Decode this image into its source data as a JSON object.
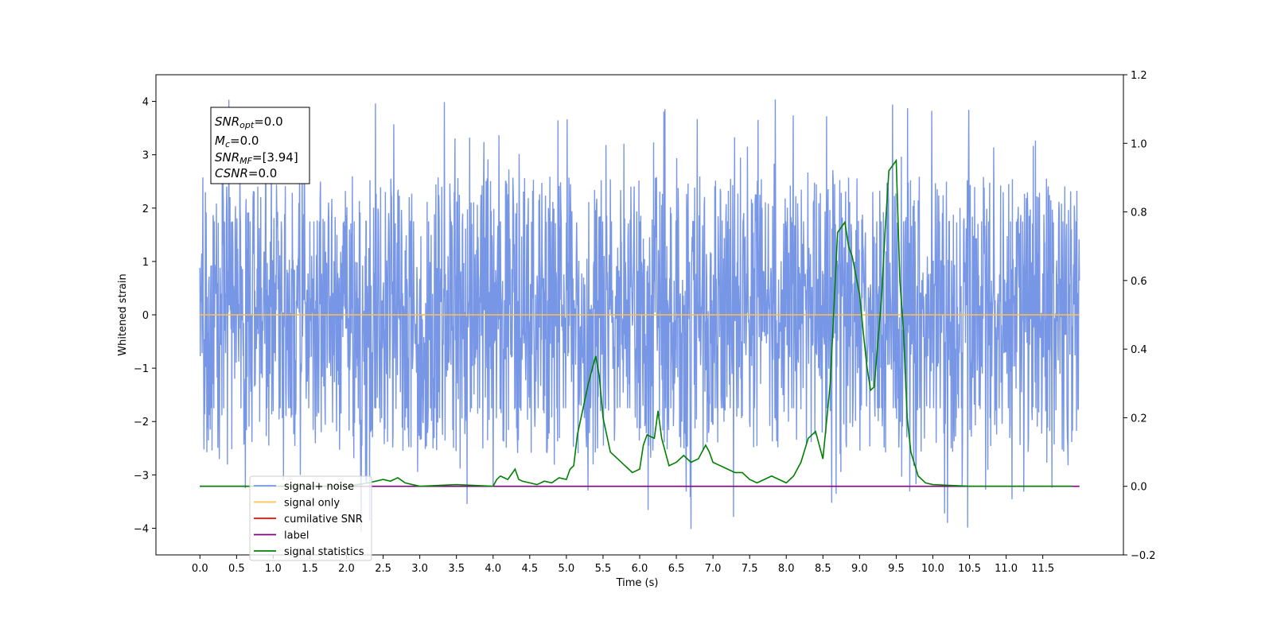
{
  "chart_data": {
    "type": "line",
    "title": "",
    "xlabel": "Time (s)",
    "ylabel": "Whitened strain",
    "y2label": "",
    "xlim": [
      -0.6,
      12.6
    ],
    "ylim": [
      -4.5,
      4.5
    ],
    "y2lim": [
      -0.2,
      1.2
    ],
    "x_ticks": [
      "0.0",
      "0.5",
      "1.0",
      "1.5",
      "2.0",
      "2.5",
      "3.0",
      "3.5",
      "4.0",
      "4.5",
      "5.0",
      "5.5",
      "6.0",
      "6.5",
      "7.0",
      "7.5",
      "8.0",
      "8.5",
      "9.0",
      "9.5",
      "10.0",
      "10.5",
      "11.0",
      "11.5"
    ],
    "y_ticks": [
      "−4",
      "−3",
      "−2",
      "−1",
      "0",
      "1",
      "2",
      "3",
      "4"
    ],
    "y2_ticks": [
      "−0.2",
      "0.0",
      "0.2",
      "0.4",
      "0.6",
      "0.8",
      "1.0",
      "1.2"
    ],
    "grid": false,
    "legend_position": "lower-left",
    "stats_box": {
      "snr_opt": {
        "label": "SNR",
        "sub": "opt",
        "value": "=0.0"
      },
      "mc": {
        "label": "M",
        "sub": "c",
        "value": "=0.0"
      },
      "snr_mf": {
        "label": "SNR",
        "sub": "MF",
        "value": "=[3.94]"
      },
      "csnr": {
        "label": "CSNR",
        "sub": "",
        "value": "=0.0"
      }
    },
    "series": [
      {
        "name": "signal+ noise",
        "color": "#7896e6",
        "axis": "left",
        "kind": "noise",
        "x_range": [
          0.0,
          12.0
        ],
        "envelope": [
          -1.75,
          1.75
        ],
        "spike_range": [
          -4.1,
          4.1
        ]
      },
      {
        "name": "signal only",
        "color": "#ffc04d",
        "axis": "left",
        "x": [
          0.0,
          12.0
        ],
        "y": [
          0.0,
          0.0
        ]
      },
      {
        "name": "cumilative SNR",
        "color": "#ff0000",
        "axis": "left",
        "x": [],
        "y": []
      },
      {
        "name": "label",
        "color": "#800080",
        "axis": "right",
        "x": [
          0.0,
          12.0
        ],
        "y": [
          0.0,
          0.0
        ]
      },
      {
        "name": "signal statistics",
        "color": "#008000",
        "axis": "right",
        "x": [
          0.0,
          0.5,
          1.0,
          1.5,
          2.0,
          2.3,
          2.5,
          2.6,
          2.7,
          2.8,
          3.0,
          3.5,
          4.0,
          4.05,
          4.1,
          4.2,
          4.3,
          4.35,
          4.4,
          4.5,
          4.6,
          4.7,
          4.8,
          4.9,
          5.0,
          5.05,
          5.1,
          5.15,
          5.2,
          5.3,
          5.4,
          5.45,
          5.5,
          5.6,
          5.7,
          5.8,
          5.85,
          5.9,
          6.0,
          6.05,
          6.1,
          6.2,
          6.25,
          6.3,
          6.4,
          6.5,
          6.6,
          6.7,
          6.8,
          6.9,
          6.95,
          7.0,
          7.1,
          7.2,
          7.3,
          7.4,
          7.5,
          7.6,
          7.7,
          7.8,
          7.9,
          8.0,
          8.1,
          8.2,
          8.3,
          8.4,
          8.5,
          8.6,
          8.7,
          8.8,
          8.85,
          8.9,
          9.0,
          9.05,
          9.1,
          9.15,
          9.2,
          9.3,
          9.35,
          9.4,
          9.5,
          9.55,
          9.6,
          9.65,
          9.7,
          9.8,
          9.9,
          10.0,
          10.5,
          11.0,
          11.5,
          11.9
        ],
        "y": [
          0.0,
          0.0,
          0.0,
          0.0,
          0.0,
          0.01,
          0.02,
          0.015,
          0.025,
          0.01,
          0.0,
          0.005,
          0.0,
          0.02,
          0.03,
          0.02,
          0.05,
          0.02,
          0.015,
          0.01,
          0.005,
          0.015,
          0.01,
          0.025,
          0.02,
          0.05,
          0.06,
          0.15,
          0.2,
          0.3,
          0.38,
          0.32,
          0.2,
          0.1,
          0.08,
          0.06,
          0.05,
          0.04,
          0.05,
          0.12,
          0.15,
          0.14,
          0.22,
          0.14,
          0.06,
          0.07,
          0.09,
          0.07,
          0.08,
          0.12,
          0.1,
          0.07,
          0.06,
          0.05,
          0.04,
          0.04,
          0.02,
          0.01,
          0.02,
          0.03,
          0.02,
          0.01,
          0.03,
          0.07,
          0.14,
          0.16,
          0.08,
          0.3,
          0.74,
          0.77,
          0.7,
          0.67,
          0.56,
          0.45,
          0.35,
          0.28,
          0.29,
          0.55,
          0.75,
          0.92,
          0.95,
          0.6,
          0.45,
          0.2,
          0.1,
          0.03,
          0.01,
          0.005,
          0.0,
          0.0,
          0.0,
          0.0
        ]
      }
    ]
  }
}
